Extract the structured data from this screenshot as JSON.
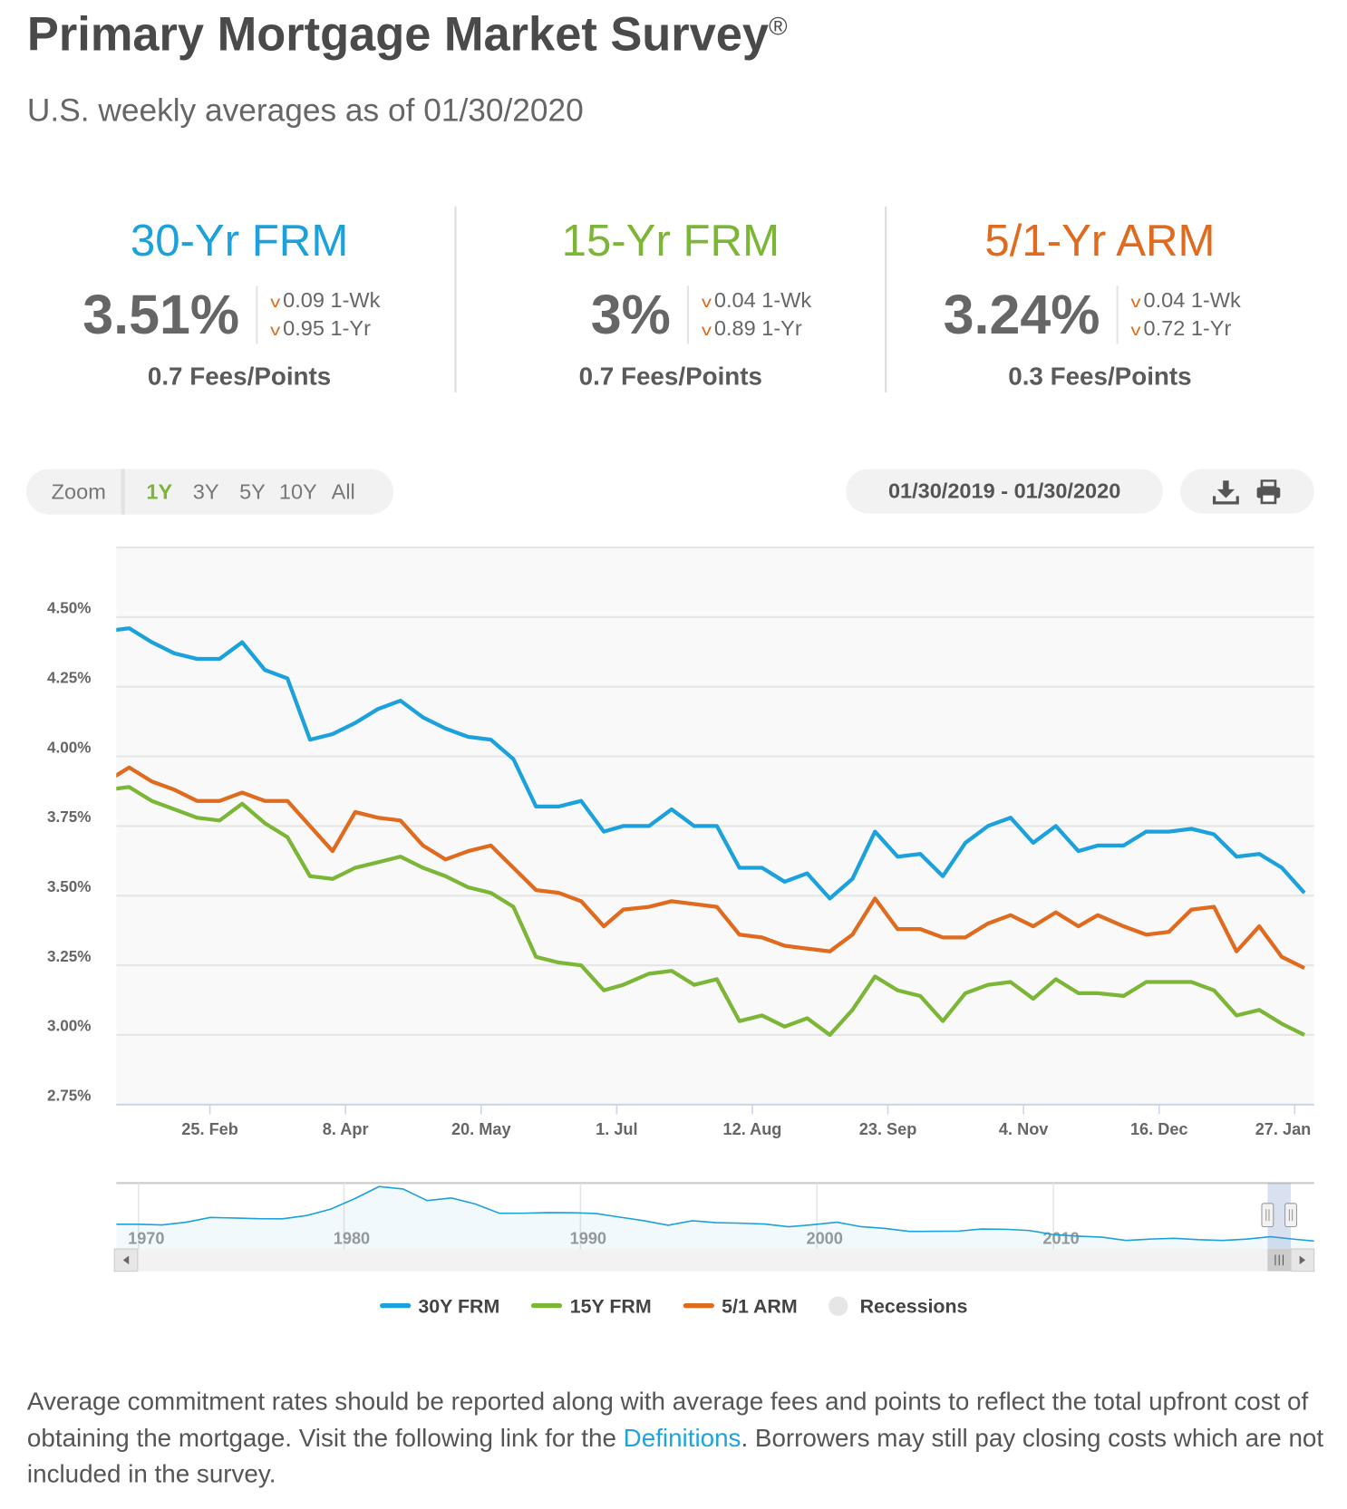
{
  "header": {
    "title": "Primary Mortgage Market Survey",
    "title_mark": "®",
    "subtitle": "U.S. weekly averages as of 01/30/2020"
  },
  "products": [
    {
      "title": "30-Yr FRM",
      "color": "#1ba1db",
      "rate": "3.51%",
      "change_1wk": "0.09 1-Wk",
      "change_1yr": "0.95 1-Yr",
      "change_direction": "down",
      "fees": "0.7 Fees/Points"
    },
    {
      "title": "15-Yr FRM",
      "color": "#7cb637",
      "rate": "3%",
      "change_1wk": "0.04 1-Wk",
      "change_1yr": "0.89 1-Yr",
      "change_direction": "down",
      "fees": "0.7 Fees/Points"
    },
    {
      "title": "5/1-Yr ARM",
      "color": "#e06a1e",
      "rate": "3.24%",
      "change_1wk": "0.04 1-Wk",
      "change_1yr": "0.72 1-Yr",
      "change_direction": "down",
      "fees": "0.3 Fees/Points"
    }
  ],
  "toolbar": {
    "zoom_label": "Zoom",
    "zoom_options": [
      "1Y",
      "3Y",
      "5Y",
      "10Y",
      "All"
    ],
    "zoom_selected": "1Y",
    "date_range": "01/30/2019 - 01/30/2020",
    "icons": [
      "download-icon",
      "print-icon"
    ]
  },
  "chart_data": {
    "type": "line",
    "title": "",
    "xlabel": "",
    "ylabel": "",
    "grid": true,
    "legend_position": "bottom",
    "ylim": [
      2.75,
      4.75
    ],
    "yticks": [
      "2.75%",
      "3.00%",
      "3.25%",
      "3.50%",
      "3.75%",
      "4.00%",
      "4.25%",
      "4.50%"
    ],
    "ytick_values": [
      2.75,
      3.0,
      3.25,
      3.5,
      3.75,
      4.0,
      4.25,
      4.5
    ],
    "xlim": [
      "2019-01-27",
      "2020-02-02"
    ],
    "xticks": [
      "25. Feb",
      "8. Apr",
      "20. May",
      "1. Jul",
      "12. Aug",
      "23. Sep",
      "4. Nov",
      "16. Dec",
      "27. Jan"
    ],
    "xtick_dates": [
      "2019-02-25",
      "2019-04-08",
      "2019-05-20",
      "2019-07-01",
      "2019-08-12",
      "2019-09-23",
      "2019-11-04",
      "2019-12-16",
      "2020-01-27"
    ],
    "x": [
      "2019-01-24",
      "2019-01-31",
      "2019-02-07",
      "2019-02-14",
      "2019-02-21",
      "2019-02-28",
      "2019-03-07",
      "2019-03-14",
      "2019-03-21",
      "2019-03-28",
      "2019-04-04",
      "2019-04-11",
      "2019-04-18",
      "2019-04-25",
      "2019-05-02",
      "2019-05-09",
      "2019-05-16",
      "2019-05-23",
      "2019-05-30",
      "2019-06-06",
      "2019-06-13",
      "2019-06-20",
      "2019-06-27",
      "2019-07-03",
      "2019-07-11",
      "2019-07-18",
      "2019-07-25",
      "2019-08-01",
      "2019-08-08",
      "2019-08-15",
      "2019-08-22",
      "2019-08-29",
      "2019-09-05",
      "2019-09-12",
      "2019-09-19",
      "2019-09-26",
      "2019-10-03",
      "2019-10-10",
      "2019-10-17",
      "2019-10-24",
      "2019-10-31",
      "2019-11-07",
      "2019-11-14",
      "2019-11-21",
      "2019-11-27",
      "2019-12-05",
      "2019-12-12",
      "2019-12-19",
      "2019-12-26",
      "2020-01-02",
      "2020-01-09",
      "2020-01-16",
      "2020-01-23",
      "2020-01-30"
    ],
    "series": [
      {
        "name": "30Y FRM",
        "color": "#1ba1db",
        "values": [
          4.45,
          4.46,
          4.41,
          4.37,
          4.35,
          4.35,
          4.41,
          4.31,
          4.28,
          4.06,
          4.08,
          4.12,
          4.17,
          4.2,
          4.14,
          4.1,
          4.07,
          4.06,
          3.99,
          3.82,
          3.82,
          3.84,
          3.73,
          3.75,
          3.75,
          3.81,
          3.75,
          3.75,
          3.6,
          3.6,
          3.55,
          3.58,
          3.49,
          3.56,
          3.73,
          3.64,
          3.65,
          3.57,
          3.69,
          3.75,
          3.78,
          3.69,
          3.75,
          3.66,
          3.68,
          3.68,
          3.73,
          3.73,
          3.74,
          3.72,
          3.64,
          3.65,
          3.6,
          3.51
        ]
      },
      {
        "name": "15Y FRM",
        "color": "#7cb637",
        "values": [
          3.88,
          3.89,
          3.84,
          3.81,
          3.78,
          3.77,
          3.83,
          3.76,
          3.71,
          3.57,
          3.56,
          3.6,
          3.62,
          3.64,
          3.6,
          3.57,
          3.53,
          3.51,
          3.46,
          3.28,
          3.26,
          3.25,
          3.16,
          3.18,
          3.22,
          3.23,
          3.18,
          3.2,
          3.05,
          3.07,
          3.03,
          3.06,
          3.0,
          3.09,
          3.21,
          3.16,
          3.14,
          3.05,
          3.15,
          3.18,
          3.19,
          3.13,
          3.2,
          3.15,
          3.15,
          3.14,
          3.19,
          3.19,
          3.19,
          3.16,
          3.07,
          3.09,
          3.04,
          3.0
        ]
      },
      {
        "name": "5/1 ARM",
        "color": "#e06a1e",
        "values": [
          3.91,
          3.96,
          3.91,
          3.88,
          3.84,
          3.84,
          3.87,
          3.84,
          3.84,
          3.75,
          3.66,
          3.8,
          3.78,
          3.77,
          3.68,
          3.63,
          3.66,
          3.68,
          3.6,
          3.52,
          3.51,
          3.48,
          3.39,
          3.45,
          3.46,
          3.48,
          3.47,
          3.46,
          3.36,
          3.35,
          3.32,
          3.31,
          3.3,
          3.36,
          3.49,
          3.38,
          3.38,
          3.35,
          3.35,
          3.4,
          3.43,
          3.39,
          3.44,
          3.39,
          3.43,
          3.39,
          3.36,
          3.37,
          3.45,
          3.46,
          3.3,
          3.39,
          3.28,
          3.24
        ]
      }
    ],
    "legend": [
      {
        "label": "30Y FRM",
        "color": "#1ba1db"
      },
      {
        "label": "15Y FRM",
        "color": "#7cb637"
      },
      {
        "label": "5/1 ARM",
        "color": "#e06a1e"
      },
      {
        "label": "Recessions",
        "color": "#e6e6e6"
      }
    ],
    "navigator": {
      "series": "30Y FRM",
      "xticks": [
        "1970",
        "1980",
        "1990",
        "2000",
        "2010"
      ],
      "years": [
        1971,
        1972,
        1973,
        1974,
        1975,
        1976,
        1977,
        1978,
        1979,
        1980,
        1981,
        1982,
        1983,
        1984,
        1985,
        1986,
        1987,
        1988,
        1989,
        1990,
        1991,
        1992,
        1993,
        1994,
        1995,
        1996,
        1997,
        1998,
        1999,
        2000,
        2001,
        2002,
        2003,
        2004,
        2005,
        2006,
        2007,
        2008,
        2009,
        2010,
        2011,
        2012,
        2013,
        2014,
        2015,
        2016,
        2017,
        2018,
        2019,
        2020
      ],
      "values": [
        7.54,
        7.38,
        8.04,
        9.19,
        9.05,
        8.87,
        8.85,
        9.64,
        11.2,
        13.74,
        16.63,
        16.04,
        13.24,
        13.88,
        12.43,
        10.19,
        10.21,
        10.34,
        10.32,
        10.13,
        9.25,
        8.39,
        7.31,
        8.38,
        7.93,
        7.81,
        7.6,
        6.94,
        7.44,
        8.05,
        6.97,
        6.54,
        5.83,
        5.84,
        5.87,
        6.41,
        6.34,
        6.03,
        5.04,
        4.69,
        4.45,
        3.66,
        3.98,
        4.17,
        3.85,
        3.65,
        3.99,
        4.54,
        3.94,
        3.51
      ],
      "selected_range": "1Y"
    }
  },
  "footer": {
    "text_before": "Average commitment rates should be reported along with average fees and points to reflect the total upfront cost of obtaining the mortgage. Visit the following link for the ",
    "link_text": "Definitions",
    "text_after": ". Borrowers may still pay closing costs which are not included in the survey."
  }
}
